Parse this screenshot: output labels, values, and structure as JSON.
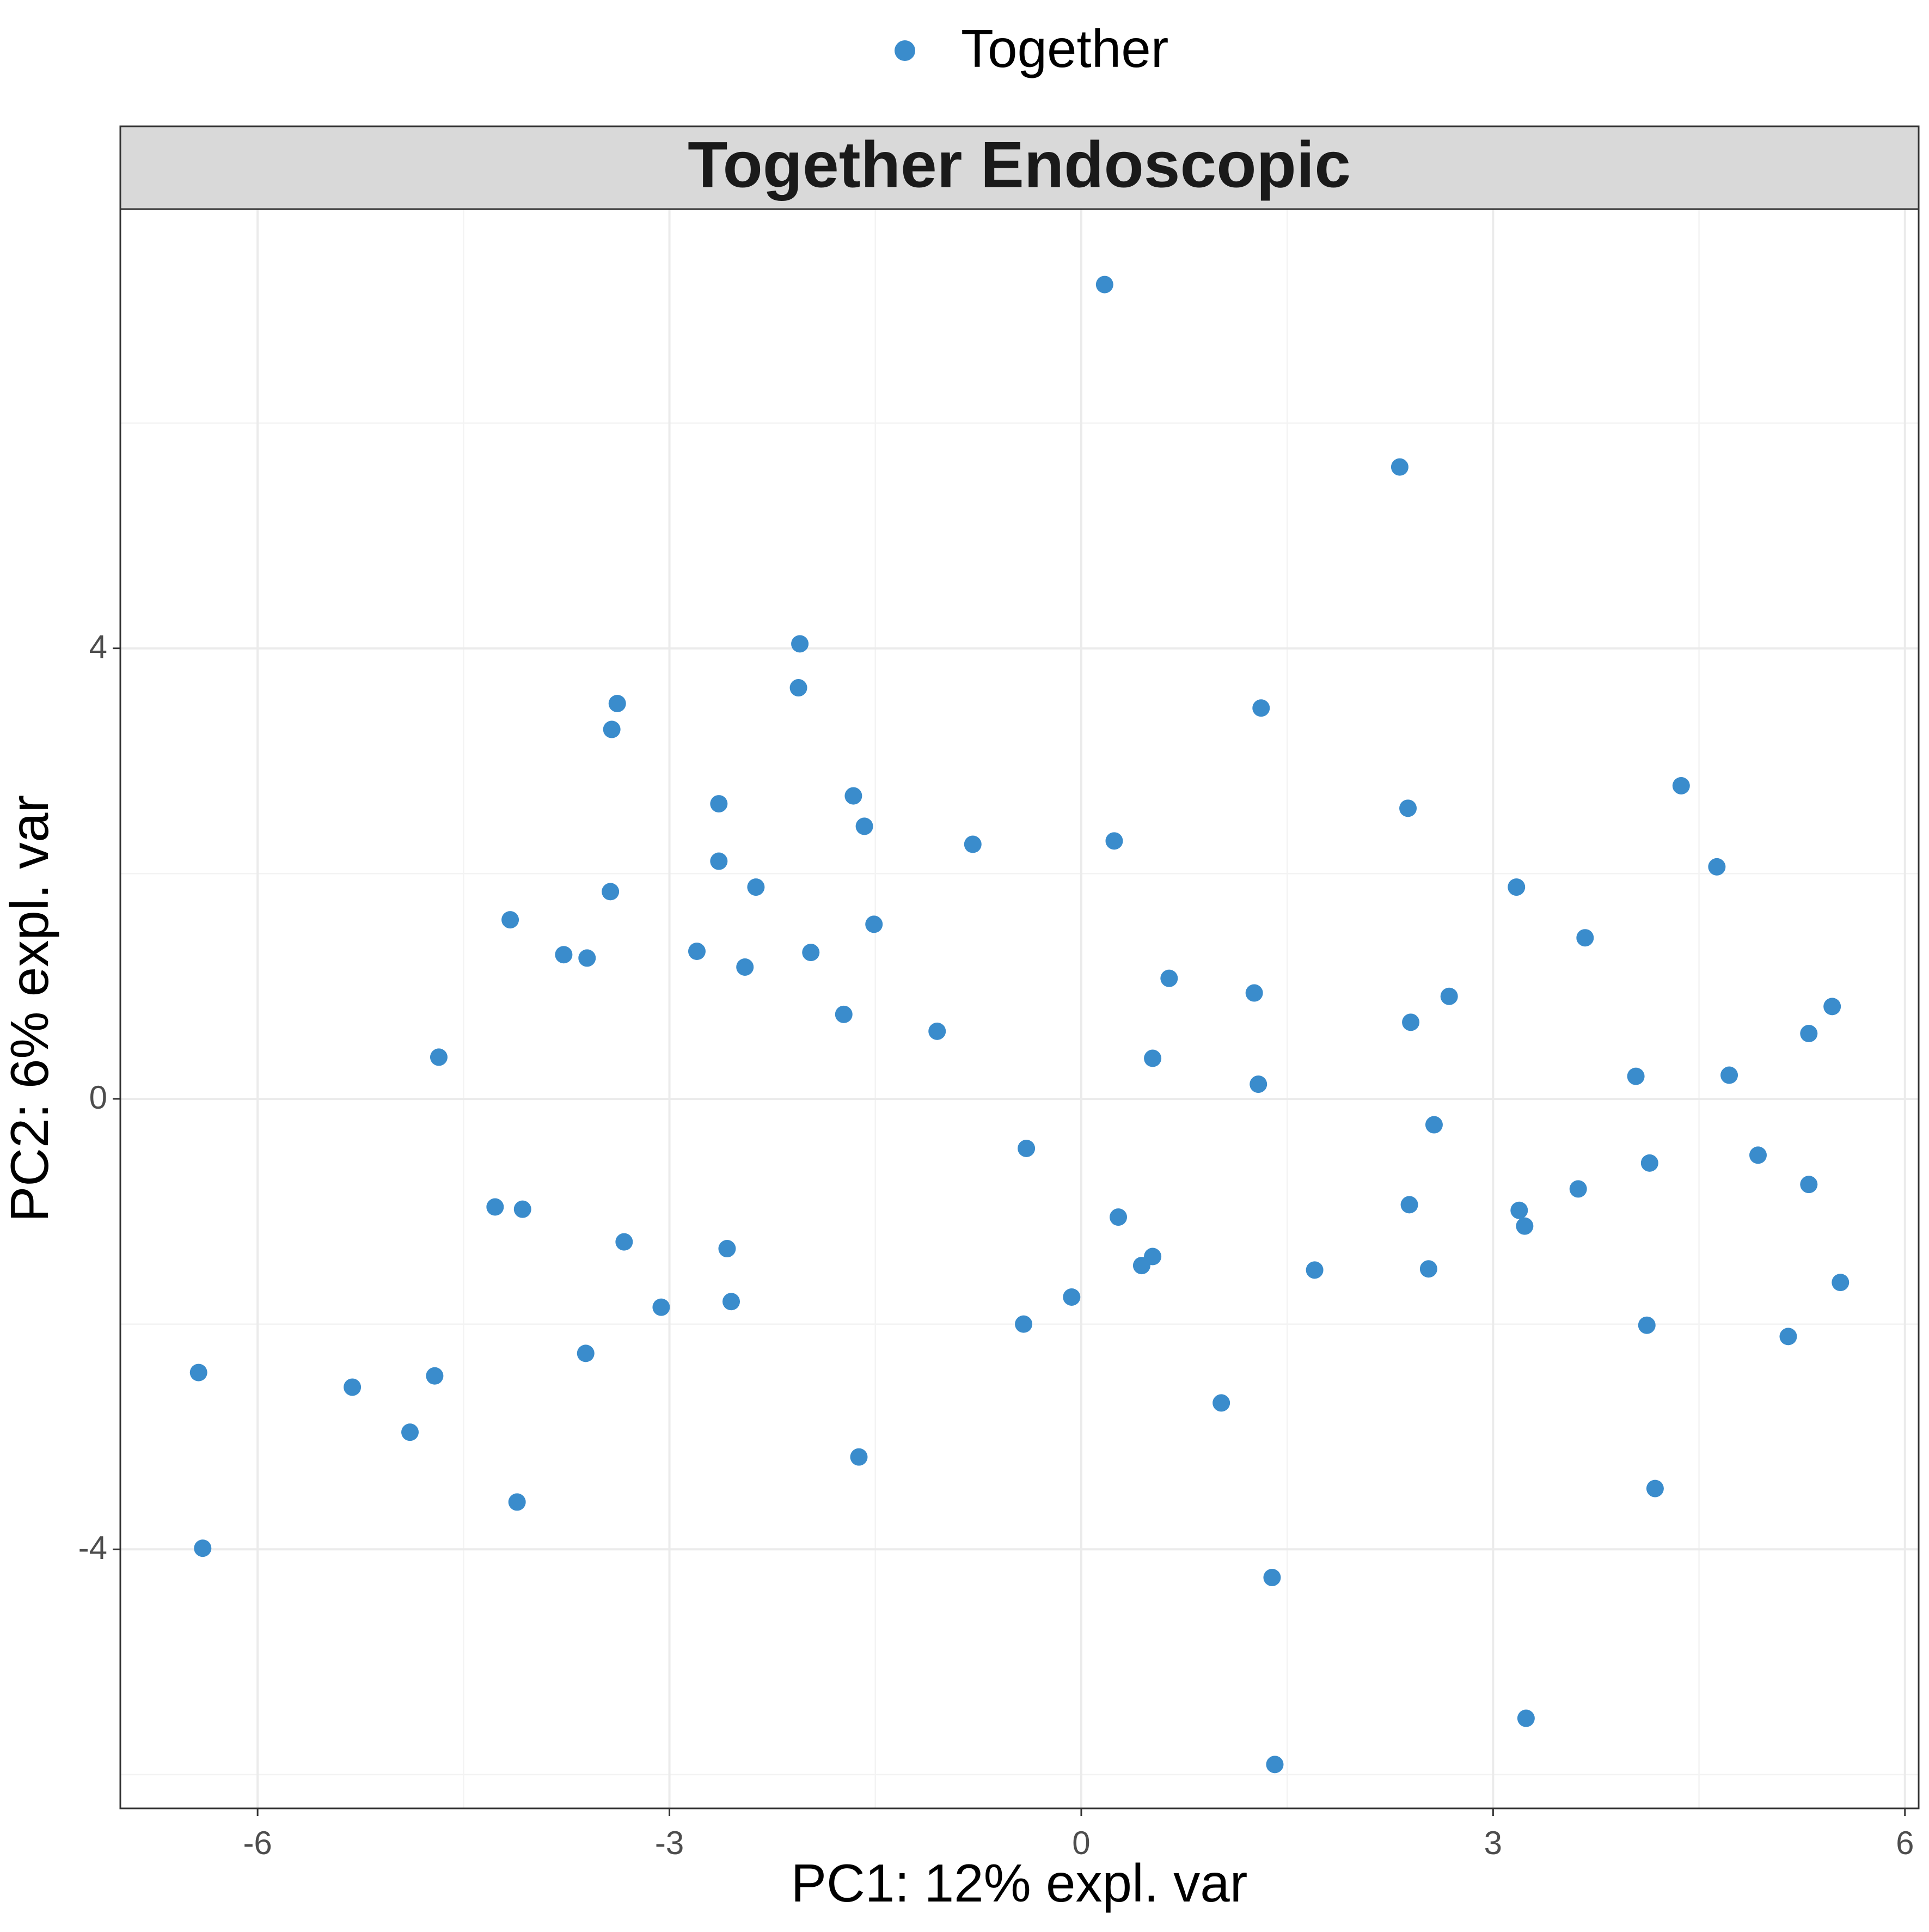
{
  "chart_data": {
    "type": "scatter",
    "facet_title": "Together Endoscopic",
    "xlabel": "PC1: 12% expl. var",
    "ylabel": "PC2: 6% expl. var",
    "xlim": [
      -7.0,
      6.1
    ],
    "ylim": [
      -6.3,
      7.9
    ],
    "x_ticks": [
      -6,
      -3,
      0,
      3,
      6
    ],
    "x_tick_labels": [
      "-6",
      "-3",
      "0",
      "3",
      "6"
    ],
    "y_ticks": [
      -4,
      0,
      4
    ],
    "y_tick_labels": [
      "-4",
      "0",
      "4"
    ],
    "grid": true,
    "legend": {
      "position": "top",
      "entries": [
        {
          "label": "Together",
          "color": "#3a8ccc"
        }
      ]
    },
    "series": [
      {
        "name": "Together",
        "color": "#3a8ccc",
        "points": [
          [
            0.17,
            7.23
          ],
          [
            2.32,
            5.61
          ],
          [
            -2.05,
            4.04
          ],
          [
            -2.06,
            3.65
          ],
          [
            -3.38,
            3.51
          ],
          [
            -3.42,
            3.28
          ],
          [
            1.31,
            3.47
          ],
          [
            -1.66,
            2.69
          ],
          [
            -2.64,
            2.62
          ],
          [
            2.38,
            2.58
          ],
          [
            4.37,
            2.78
          ],
          [
            -1.58,
            2.42
          ],
          [
            -0.79,
            2.26
          ],
          [
            0.24,
            2.29
          ],
          [
            -2.64,
            2.11
          ],
          [
            4.63,
            2.06
          ],
          [
            -3.43,
            1.84
          ],
          [
            -2.37,
            1.88
          ],
          [
            3.17,
            1.88
          ],
          [
            -4.16,
            1.59
          ],
          [
            -1.51,
            1.55
          ],
          [
            3.67,
            1.43
          ],
          [
            -3.77,
            1.28
          ],
          [
            -3.6,
            1.25
          ],
          [
            -2.8,
            1.31
          ],
          [
            -1.97,
            1.3
          ],
          [
            -2.45,
            1.17
          ],
          [
            0.64,
            1.07
          ],
          [
            1.26,
            0.94
          ],
          [
            2.68,
            0.91
          ],
          [
            -1.73,
            0.75
          ],
          [
            -1.05,
            0.6
          ],
          [
            2.4,
            0.68
          ],
          [
            5.47,
            0.82
          ],
          [
            5.3,
            0.58
          ],
          [
            -4.68,
            0.37
          ],
          [
            0.52,
            0.36
          ],
          [
            4.04,
            0.2
          ],
          [
            4.72,
            0.21
          ],
          [
            1.29,
            0.13
          ],
          [
            2.57,
            -0.23
          ],
          [
            -0.4,
            -0.44
          ],
          [
            4.14,
            -0.57
          ],
          [
            4.93,
            -0.5
          ],
          [
            5.3,
            -0.76
          ],
          [
            3.62,
            -0.8
          ],
          [
            -4.27,
            -0.96
          ],
          [
            -4.07,
            -0.98
          ],
          [
            2.39,
            -0.94
          ],
          [
            3.19,
            -0.99
          ],
          [
            3.23,
            -1.13
          ],
          [
            0.27,
            -1.05
          ],
          [
            -3.33,
            -1.27
          ],
          [
            -2.58,
            -1.33
          ],
          [
            0.52,
            -1.4
          ],
          [
            0.44,
            -1.48
          ],
          [
            1.7,
            -1.52
          ],
          [
            2.53,
            -1.51
          ],
          [
            5.53,
            -1.63
          ],
          [
            -3.06,
            -1.85
          ],
          [
            -2.55,
            -1.8
          ],
          [
            -0.07,
            -1.76
          ],
          [
            -0.42,
            -2.0
          ],
          [
            4.12,
            -2.01
          ],
          [
            5.15,
            -2.11
          ],
          [
            -3.61,
            -2.26
          ],
          [
            -6.43,
            -2.43
          ],
          [
            -5.31,
            -2.56
          ],
          [
            -4.71,
            -2.46
          ],
          [
            -4.89,
            -2.96
          ],
          [
            1.02,
            -2.7
          ],
          [
            -1.62,
            -3.18
          ],
          [
            -4.11,
            -3.58
          ],
          [
            4.18,
            -3.46
          ],
          [
            -6.4,
            -3.99
          ],
          [
            1.39,
            -4.25
          ],
          [
            3.24,
            -5.5
          ],
          [
            1.41,
            -5.91
          ]
        ]
      }
    ]
  }
}
